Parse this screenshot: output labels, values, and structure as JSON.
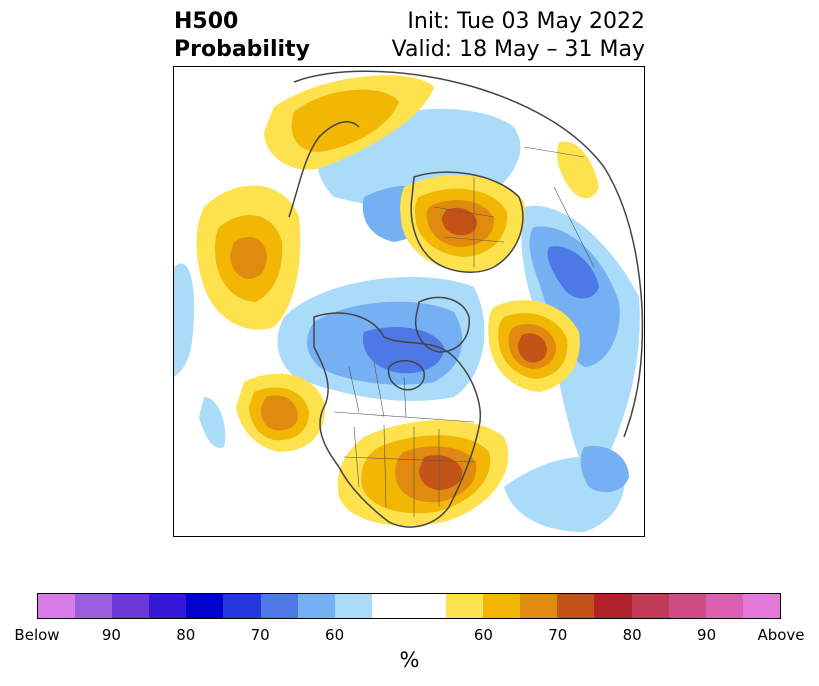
{
  "title": {
    "variable": "H500",
    "subtitle": "Probability",
    "init": "Init: Tue 03 May 2022",
    "valid": "Valid: 18 May – 31 May"
  },
  "colorbar": {
    "unit": "%",
    "tick_labels": [
      "Below",
      "90",
      "80",
      "70",
      "60",
      "60",
      "70",
      "80",
      "90",
      "Above"
    ],
    "colors": [
      "#d67be8",
      "#9a5ddf",
      "#6a3bd9",
      "#3519d6",
      "#0202cf",
      "#2437dc",
      "#4d78e6",
      "#74b0f2",
      "#aadcfa",
      "#ffffff",
      "#ffffff",
      "#fde14d",
      "#f2b705",
      "#e08b10",
      "#c45317",
      "#b0232a",
      "#c23a55",
      "#cf4d84",
      "#dd60b0",
      "#e678d9"
    ]
  },
  "map": {
    "projection": "north-polar-stereographic",
    "palette": {
      "below_60": "#aadcfa",
      "below_70": "#74b0f2",
      "below_80": "#4d78e6",
      "above_60": "#fde14d",
      "above_70": "#f2b705",
      "above_80": "#e08b10",
      "above_90": "#c45317",
      "coast": "#444444"
    }
  }
}
